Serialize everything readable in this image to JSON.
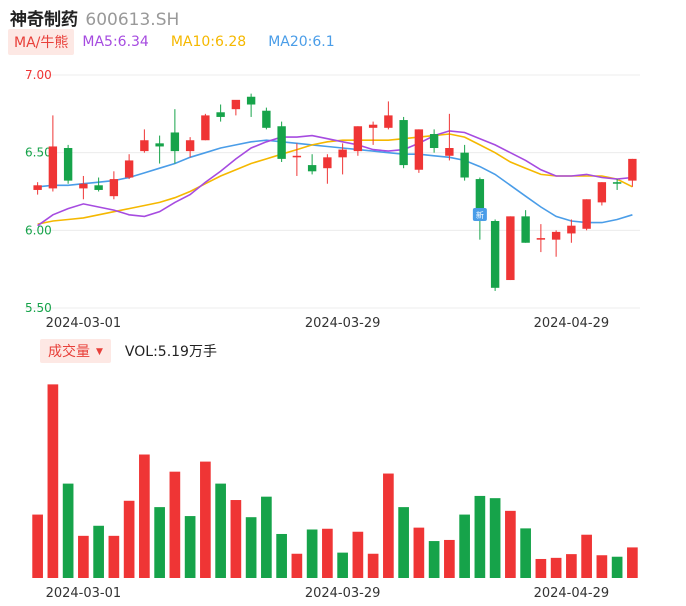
{
  "header": {
    "name": "神奇制药",
    "code": "600613.SH"
  },
  "ma_legend": {
    "tag": "MA/牛熊",
    "items": [
      {
        "label": "MA5:6.34",
        "color": "#a64be0"
      },
      {
        "label": "MA10:6.28",
        "color": "#f5b800"
      },
      {
        "label": "MA20:6.1",
        "color": "#4a9de8"
      }
    ]
  },
  "volume_legend": {
    "tag": "成交量",
    "caret": "▼",
    "text": "VOL:5.19万手"
  },
  "colors": {
    "up": "#ef3535",
    "down": "#16a34a",
    "ma5": "#a64be0",
    "ma10": "#f5b800",
    "ma20": "#4a9de8",
    "marker": "#4a9de8"
  },
  "chart_data": [
    {
      "type": "candlestick",
      "ylim": [
        5.5,
        7.0
      ],
      "y_ticks": [
        "7.00",
        "6.50",
        "6.00",
        "5.50"
      ],
      "y_tick_colors": [
        "#ef3535",
        "#16a34a",
        "#16a34a",
        "#16a34a"
      ],
      "x_tick_labels": [
        {
          "label": "2024-03-01",
          "index": 3
        },
        {
          "label": "2024-03-29",
          "index": 20
        },
        {
          "label": "2024-04-29",
          "index": 35
        }
      ],
      "marker": {
        "index": 29,
        "text": "新"
      },
      "candles": [
        {
          "o": 6.26,
          "h": 6.31,
          "l": 6.23,
          "c": 6.29
        },
        {
          "o": 6.27,
          "h": 6.74,
          "l": 6.25,
          "c": 6.54
        },
        {
          "o": 6.53,
          "h": 6.55,
          "l": 6.3,
          "c": 6.32
        },
        {
          "o": 6.27,
          "h": 6.35,
          "l": 6.2,
          "c": 6.3
        },
        {
          "o": 6.29,
          "h": 6.34,
          "l": 6.25,
          "c": 6.26
        },
        {
          "o": 6.22,
          "h": 6.38,
          "l": 6.2,
          "c": 6.33
        },
        {
          "o": 6.34,
          "h": 6.49,
          "l": 6.33,
          "c": 6.45
        },
        {
          "o": 6.51,
          "h": 6.65,
          "l": 6.5,
          "c": 6.58
        },
        {
          "o": 6.56,
          "h": 6.61,
          "l": 6.43,
          "c": 6.54
        },
        {
          "o": 6.63,
          "h": 6.78,
          "l": 6.43,
          "c": 6.51
        },
        {
          "o": 6.51,
          "h": 6.6,
          "l": 6.47,
          "c": 6.58
        },
        {
          "o": 6.58,
          "h": 6.75,
          "l": 6.58,
          "c": 6.74
        },
        {
          "o": 6.76,
          "h": 6.81,
          "l": 6.7,
          "c": 6.73
        },
        {
          "o": 6.78,
          "h": 6.83,
          "l": 6.74,
          "c": 6.84
        },
        {
          "o": 6.86,
          "h": 6.88,
          "l": 6.73,
          "c": 6.81
        },
        {
          "o": 6.77,
          "h": 6.79,
          "l": 6.65,
          "c": 6.66
        },
        {
          "o": 6.67,
          "h": 6.7,
          "l": 6.44,
          "c": 6.46
        },
        {
          "o": 6.47,
          "h": 6.56,
          "l": 6.35,
          "c": 6.48
        },
        {
          "o": 6.42,
          "h": 6.49,
          "l": 6.36,
          "c": 6.38
        },
        {
          "o": 6.4,
          "h": 6.49,
          "l": 6.3,
          "c": 6.47
        },
        {
          "o": 6.47,
          "h": 6.56,
          "l": 6.36,
          "c": 6.52
        },
        {
          "o": 6.51,
          "h": 6.67,
          "l": 6.48,
          "c": 6.67
        },
        {
          "o": 6.66,
          "h": 6.7,
          "l": 6.55,
          "c": 6.68
        },
        {
          "o": 6.66,
          "h": 6.83,
          "l": 6.65,
          "c": 6.74
        },
        {
          "o": 6.71,
          "h": 6.73,
          "l": 6.4,
          "c": 6.42
        },
        {
          "o": 6.39,
          "h": 6.65,
          "l": 6.37,
          "c": 6.65
        },
        {
          "o": 6.62,
          "h": 6.65,
          "l": 6.5,
          "c": 6.53
        },
        {
          "o": 6.48,
          "h": 6.75,
          "l": 6.45,
          "c": 6.53
        },
        {
          "o": 6.5,
          "h": 6.55,
          "l": 6.32,
          "c": 6.34
        },
        {
          "o": 6.33,
          "h": 6.34,
          "l": 5.94,
          "c": 6.06
        },
        {
          "o": 6.06,
          "h": 6.07,
          "l": 5.61,
          "c": 5.63
        },
        {
          "o": 5.68,
          "h": 6.09,
          "l": 5.68,
          "c": 6.09
        },
        {
          "o": 6.09,
          "h": 6.13,
          "l": 5.92,
          "c": 5.92
        },
        {
          "o": 5.94,
          "h": 6.04,
          "l": 5.86,
          "c": 5.95
        },
        {
          "o": 5.94,
          "h": 6.0,
          "l": 5.83,
          "c": 5.99
        },
        {
          "o": 5.98,
          "h": 6.07,
          "l": 5.92,
          "c": 6.03
        },
        {
          "o": 6.01,
          "h": 6.2,
          "l": 6.0,
          "c": 6.2
        },
        {
          "o": 6.18,
          "h": 6.31,
          "l": 6.16,
          "c": 6.31
        },
        {
          "o": 6.31,
          "h": 6.33,
          "l": 6.26,
          "c": 6.3
        },
        {
          "o": 6.32,
          "h": 6.46,
          "l": 6.28,
          "c": 6.46
        }
      ],
      "ma5": [
        6.03,
        6.1,
        6.14,
        6.17,
        6.15,
        6.13,
        6.1,
        6.09,
        6.12,
        6.18,
        6.23,
        6.31,
        6.38,
        6.46,
        6.53,
        6.57,
        6.6,
        6.6,
        6.61,
        6.59,
        6.57,
        6.55,
        6.52,
        6.51,
        6.52,
        6.56,
        6.61,
        6.64,
        6.63,
        6.59,
        6.55,
        6.5,
        6.45,
        6.39,
        6.35,
        6.35,
        6.36,
        6.34,
        6.33,
        6.34
      ],
      "ma10": [
        6.04,
        6.06,
        6.07,
        6.08,
        6.1,
        6.12,
        6.14,
        6.16,
        6.18,
        6.21,
        6.25,
        6.3,
        6.35,
        6.39,
        6.43,
        6.46,
        6.49,
        6.52,
        6.55,
        6.57,
        6.58,
        6.58,
        6.58,
        6.58,
        6.59,
        6.6,
        6.61,
        6.62,
        6.6,
        6.55,
        6.5,
        6.44,
        6.4,
        6.36,
        6.35,
        6.35,
        6.35,
        6.35,
        6.33,
        6.28
      ],
      "ma20": [
        6.28,
        6.29,
        6.29,
        6.3,
        6.31,
        6.32,
        6.34,
        6.37,
        6.4,
        6.43,
        6.47,
        6.5,
        6.53,
        6.55,
        6.57,
        6.58,
        6.57,
        6.56,
        6.55,
        6.54,
        6.53,
        6.52,
        6.51,
        6.5,
        6.49,
        6.49,
        6.48,
        6.47,
        6.45,
        6.41,
        6.36,
        6.29,
        6.22,
        6.15,
        6.09,
        6.06,
        6.05,
        6.05,
        6.07,
        6.1
      ]
    },
    {
      "type": "bar",
      "series_name": "VOL",
      "x_tick_labels": [
        {
          "label": "2024-03-01",
          "index": 3
        },
        {
          "label": "2024-03-29",
          "index": 20
        },
        {
          "label": "2024-04-29",
          "index": 35
        }
      ],
      "ylim": [
        0,
        5.2
      ],
      "values": [
        1.7,
        5.19,
        2.53,
        1.13,
        1.4,
        1.13,
        2.07,
        3.31,
        1.9,
        2.85,
        1.66,
        3.12,
        2.53,
        2.09,
        1.63,
        2.18,
        1.18,
        0.65,
        1.3,
        1.32,
        0.68,
        1.24,
        0.65,
        2.8,
        1.9,
        1.35,
        0.99,
        1.02,
        1.7,
        2.2,
        2.14,
        1.8,
        1.33,
        0.51,
        0.54,
        0.64,
        1.16,
        0.61,
        0.57,
        0.82
      ],
      "up": [
        true,
        true,
        false,
        true,
        false,
        true,
        true,
        true,
        false,
        true,
        false,
        true,
        false,
        true,
        false,
        false,
        false,
        true,
        false,
        true,
        false,
        true,
        true,
        true,
        false,
        true,
        false,
        true,
        false,
        false,
        false,
        true,
        false,
        true,
        true,
        true,
        true,
        true,
        false,
        true
      ]
    }
  ]
}
